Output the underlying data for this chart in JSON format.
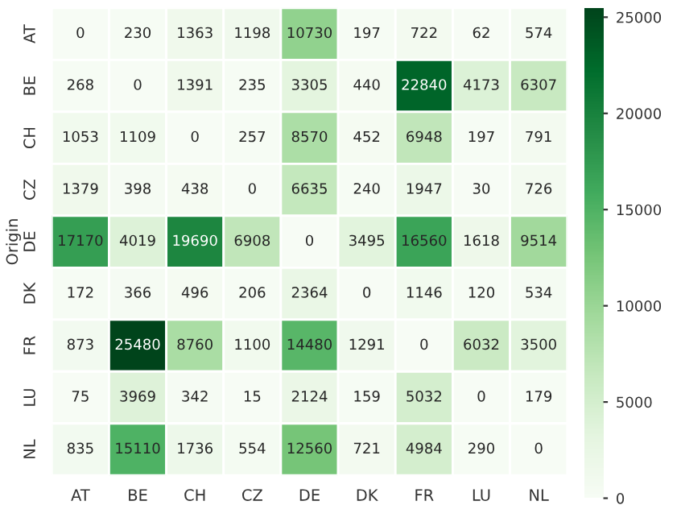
{
  "chart_data": {
    "type": "heatmap",
    "ylabel": "Origin",
    "categories": [
      "AT",
      "BE",
      "CH",
      "CZ",
      "DE",
      "DK",
      "FR",
      "LU",
      "NL"
    ],
    "y_categories": [
      "AT",
      "BE",
      "CH",
      "CZ",
      "DE",
      "DK",
      "FR",
      "LU",
      "NL"
    ],
    "cells": [
      [
        0,
        230,
        1363,
        1198,
        10730,
        197,
        722,
        62,
        574
      ],
      [
        268,
        0,
        1391,
        235,
        3305,
        440,
        22840,
        4173,
        6307
      ],
      [
        1053,
        1109,
        0,
        257,
        8570,
        452,
        6948,
        197,
        791
      ],
      [
        1379,
        398,
        438,
        0,
        6635,
        240,
        1947,
        30,
        726
      ],
      [
        17170,
        4019,
        19690,
        6908,
        0,
        3495,
        16560,
        1618,
        9514
      ],
      [
        172,
        366,
        496,
        206,
        2364,
        0,
        1146,
        120,
        534
      ],
      [
        873,
        25480,
        8760,
        1100,
        14480,
        1291,
        0,
        6032,
        3500
      ],
      [
        75,
        3969,
        342,
        15,
        2124,
        159,
        5032,
        0,
        179
      ],
      [
        835,
        15110,
        1736,
        554,
        12560,
        721,
        4984,
        290,
        0
      ]
    ],
    "data_labels": true,
    "clim": [
      0,
      25480
    ],
    "cticks": [
      0,
      5000,
      10000,
      15000,
      20000,
      25000
    ]
  }
}
